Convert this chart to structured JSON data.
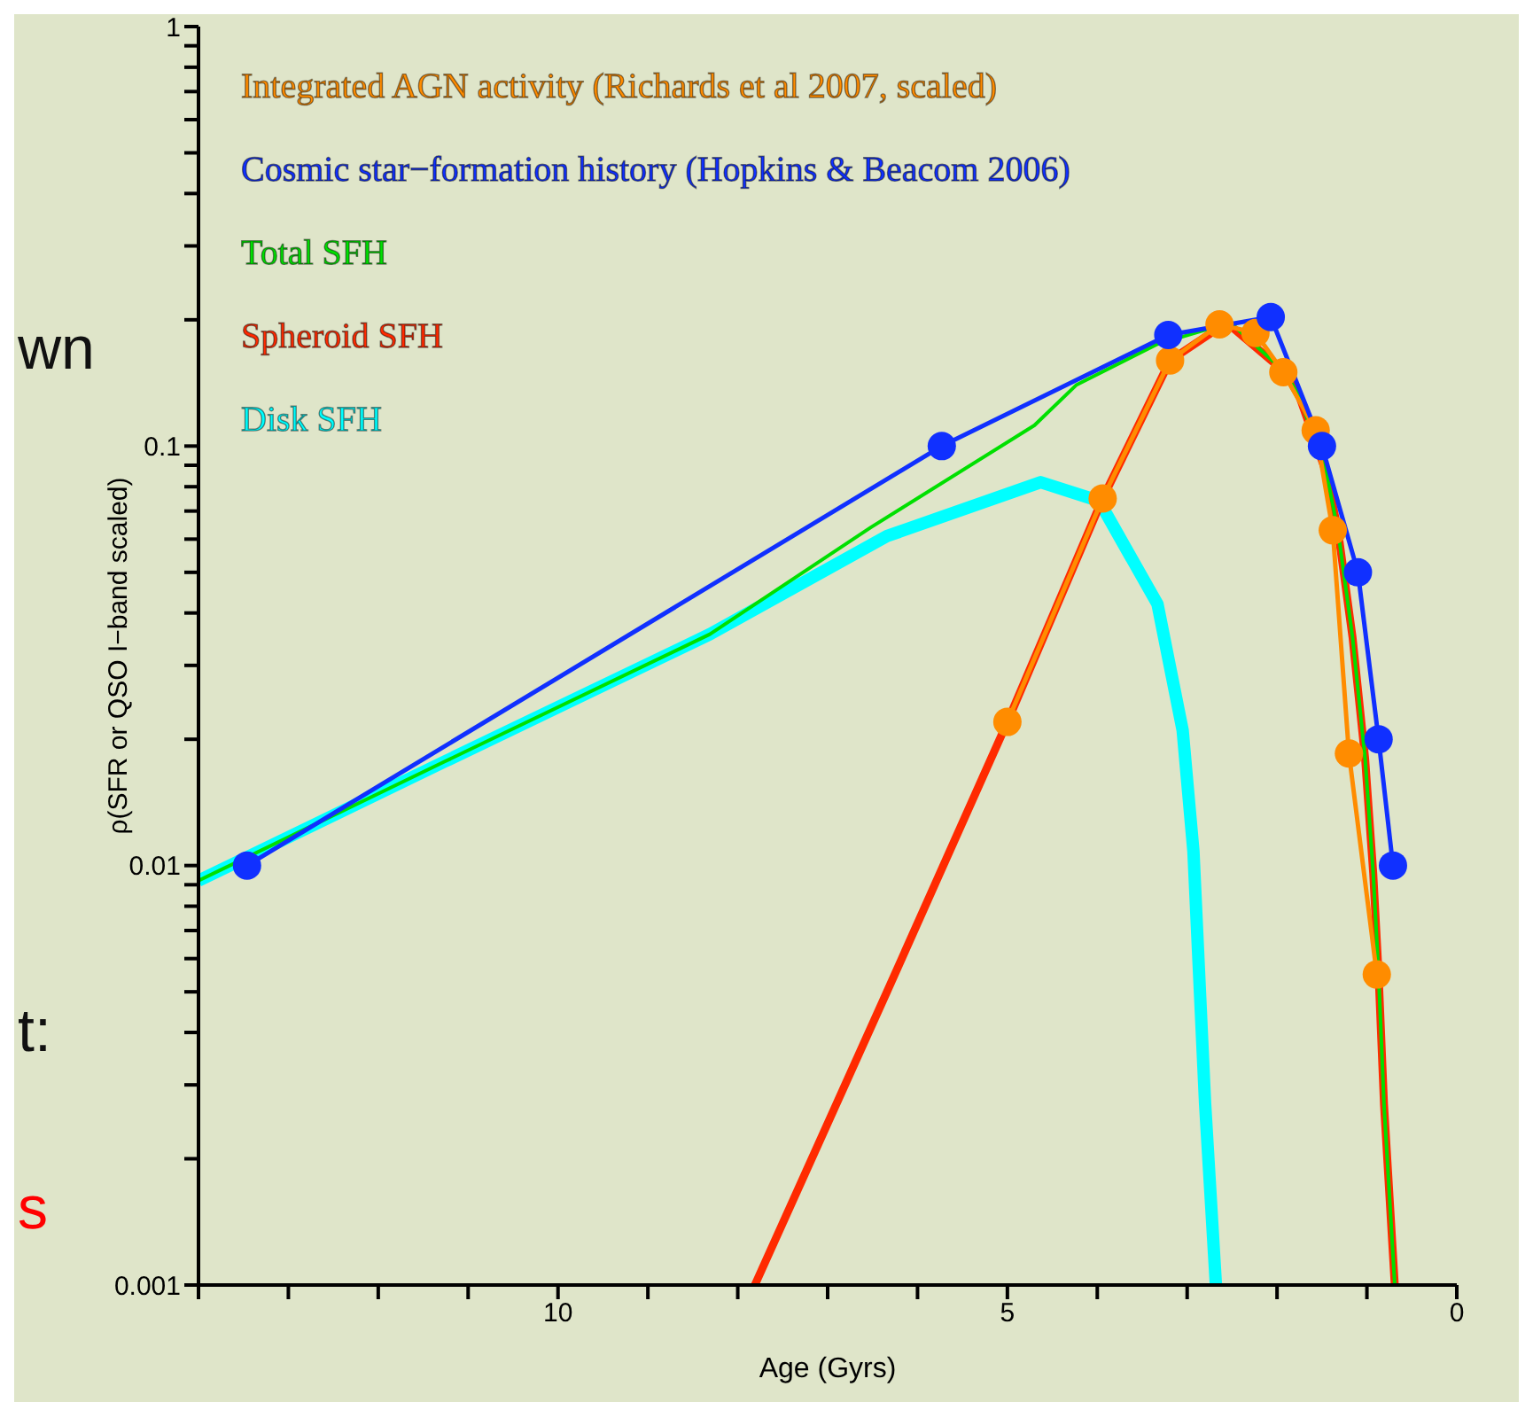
{
  "chart_data": {
    "type": "line",
    "xlabel": "Age (Gyrs)",
    "ylabel": "ρ(SFR or QSO I−band scaled)",
    "log": "y",
    "xlim": [
      14,
      0
    ],
    "ylim": [
      0.001,
      1
    ],
    "xticks": [
      {
        "value": 14,
        "label": null
      },
      {
        "value": 13,
        "label": null
      },
      {
        "value": 12,
        "label": null
      },
      {
        "value": 11,
        "label": null
      },
      10,
      {
        "value": 9,
        "label": null
      },
      {
        "value": 8,
        "label": null
      },
      {
        "value": 7,
        "label": null
      },
      {
        "value": 6,
        "label": null
      },
      5,
      {
        "value": 4,
        "label": null
      },
      {
        "value": 3,
        "label": null
      },
      {
        "value": 2,
        "label": null
      },
      {
        "value": 1,
        "label": null
      },
      0
    ],
    "yticks": [
      0.001,
      {
        "value": 0.002,
        "label": null
      },
      {
        "value": 0.003,
        "label": null
      },
      {
        "value": 0.004,
        "label": null
      },
      {
        "value": 0.005,
        "label": null
      },
      {
        "value": 0.006,
        "label": null
      },
      {
        "value": 0.007,
        "label": null
      },
      {
        "value": 0.008,
        "label": null
      },
      {
        "value": 0.009,
        "label": null
      },
      0.01,
      {
        "value": 0.02,
        "label": null
      },
      {
        "value": 0.03,
        "label": null
      },
      {
        "value": 0.04,
        "label": null
      },
      {
        "value": 0.05,
        "label": null
      },
      {
        "value": 0.06,
        "label": null
      },
      {
        "value": 0.07,
        "label": null
      },
      {
        "value": 0.08,
        "label": null
      },
      {
        "value": 0.09,
        "label": null
      },
      0.1,
      {
        "value": 0.2,
        "label": null
      },
      {
        "value": 0.3,
        "label": null
      },
      {
        "value": 0.4,
        "label": null
      },
      {
        "value": 0.5,
        "label": null
      },
      {
        "value": 0.6,
        "label": null
      },
      {
        "value": 0.7,
        "label": null
      },
      {
        "value": 0.8,
        "label": null
      },
      {
        "value": 0.9,
        "label": null
      },
      1
    ],
    "grid": false,
    "legend": "top left",
    "line_style": "solid",
    "annotations": [
      "wn",
      "t:",
      "s"
    ],
    "series": [
      {
        "name": "Integrated AGN activity (Richards et al 2007, scaled)",
        "color": "#ff8c00",
        "marker": "circle",
        "x": [
          5.0,
          3.94,
          3.19,
          2.64,
          2.24,
          1.93,
          1.57,
          1.38,
          1.2,
          0.89
        ],
        "values": [
          0.022,
          0.075,
          0.16,
          0.195,
          0.186,
          0.15,
          0.109,
          0.063,
          0.0185,
          0.0055
        ]
      },
      {
        "name": "Cosmic star−formation history (Hopkins & Beacom 2006)",
        "color": "#1030ff",
        "marker": "circle",
        "x": [
          13.46,
          5.73,
          3.21,
          2.07,
          1.5,
          1.1,
          0.87,
          0.71
        ],
        "values": [
          0.01,
          0.1,
          0.184,
          0.203,
          0.1,
          0.05,
          0.02,
          0.01
        ]
      },
      {
        "name": "Total SFH",
        "color": "#00e000",
        "marker": "none",
        "x": [
          14,
          11.26,
          8.31,
          6.52,
          4.7,
          4.23,
          3.33,
          2.52,
          1.91,
          1.75,
          1.45,
          1.32,
          1.16,
          1.02,
          0.93,
          0.87,
          0.81,
          0.69
        ],
        "values": [
          0.0092,
          0.0177,
          0.0356,
          0.064,
          0.112,
          0.14,
          0.175,
          0.197,
          0.15,
          0.131,
          0.086,
          0.0625,
          0.035,
          0.018,
          0.0096,
          0.0055,
          0.0027,
          0.001
        ]
      },
      {
        "name": "Spheroid SFH",
        "color": "#ff2a00",
        "marker": "none",
        "x": [
          7.81,
          6.34,
          5.0,
          3.94,
          3.19,
          2.56,
          1.91,
          1.75,
          1.45,
          1.32,
          1.16,
          1.02,
          0.93,
          0.87,
          0.81,
          0.69
        ],
        "values": [
          0.001,
          0.005,
          0.022,
          0.075,
          0.16,
          0.197,
          0.15,
          0.131,
          0.086,
          0.0625,
          0.035,
          0.018,
          0.0096,
          0.0055,
          0.0027,
          0.001
        ]
      },
      {
        "name": "Disk SFH",
        "color": "#00ffff",
        "marker": "none",
        "x": [
          14,
          11.26,
          8.31,
          6.34,
          4.63,
          3.98,
          3.33,
          3.05,
          2.93,
          2.8,
          2.68
        ],
        "values": [
          0.0092,
          0.0177,
          0.0356,
          0.061,
          0.082,
          0.074,
          0.042,
          0.021,
          0.0108,
          0.0027,
          0.001
        ]
      }
    ]
  }
}
